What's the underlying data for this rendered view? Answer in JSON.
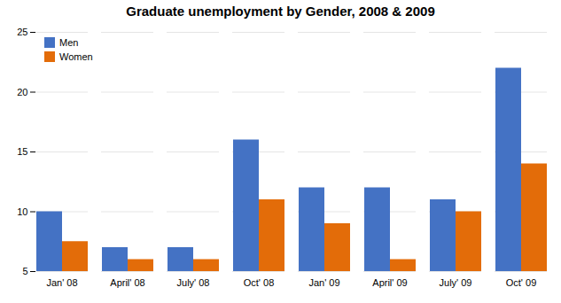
{
  "chart_data": {
    "type": "bar",
    "title": "Graduate unemployment by Gender, 2008 & 2009",
    "categories": [
      "Jan' 08",
      "April' 08",
      "July' 08",
      "Oct' 08",
      "Jan' 09",
      "April' 09",
      "July' 09",
      "Oct' 09"
    ],
    "series": [
      {
        "name": "Men",
        "color": "#4472C4",
        "values": [
          10,
          7,
          7,
          16,
          12,
          12,
          11,
          22
        ]
      },
      {
        "name": "Women",
        "color": "#E36C09",
        "values": [
          7.5,
          6,
          6,
          11,
          9,
          6,
          10,
          14
        ]
      }
    ],
    "ylim": [
      5,
      25
    ],
    "yticks": [
      5,
      10,
      15,
      20,
      25
    ],
    "grid": true,
    "legend": "upper left"
  }
}
